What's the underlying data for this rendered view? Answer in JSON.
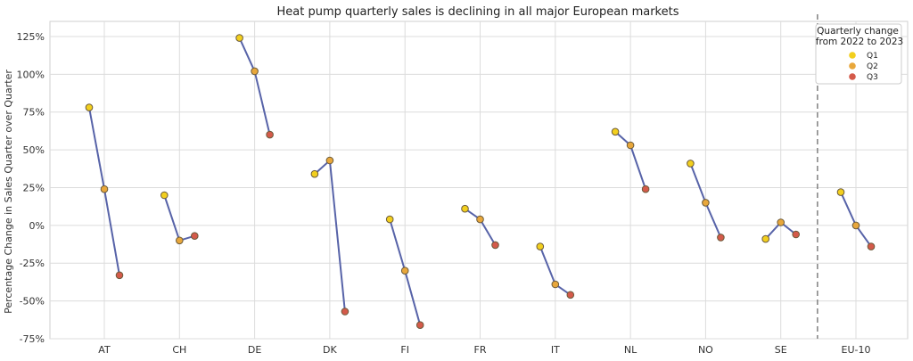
{
  "chart_data": {
    "type": "scatter",
    "title": "Heat pump quarterly sales is declining in all major European markets",
    "xlabel": "",
    "ylabel": "Percentage Change in Sales Quarter over Quarter",
    "ylim": [
      -75,
      135
    ],
    "yticks": [
      -75,
      -50,
      -25,
      0,
      25,
      50,
      75,
      100,
      125
    ],
    "ytick_labels": [
      "-75%",
      "-50%",
      "-25%",
      "0%",
      "25%",
      "50%",
      "75%",
      "100%",
      "125%"
    ],
    "grid": true,
    "categories": [
      "AT",
      "CH",
      "DE",
      "DK",
      "FI",
      "FR",
      "IT",
      "NL",
      "NO",
      "SE",
      "EU-10"
    ],
    "separator_before": "EU-10",
    "legend": {
      "title_line1": "Quarterly change",
      "title_line2": "from 2022 to 2023",
      "placement": "top-right"
    },
    "line_color": "#5763a8",
    "series": [
      {
        "name": "Q1",
        "color": "#f2cf1e",
        "values": [
          78,
          20,
          124,
          34,
          4,
          11,
          -14,
          62,
          41,
          -9,
          22
        ]
      },
      {
        "name": "Q2",
        "color": "#e8a73b",
        "values": [
          24,
          -10,
          102,
          43,
          -30,
          4,
          -39,
          53,
          15,
          2,
          0
        ]
      },
      {
        "name": "Q3",
        "color": "#d45a4a",
        "values": [
          -33,
          -7,
          60,
          -57,
          -66,
          -13,
          -46,
          24,
          -8,
          -6,
          -14
        ]
      }
    ]
  }
}
